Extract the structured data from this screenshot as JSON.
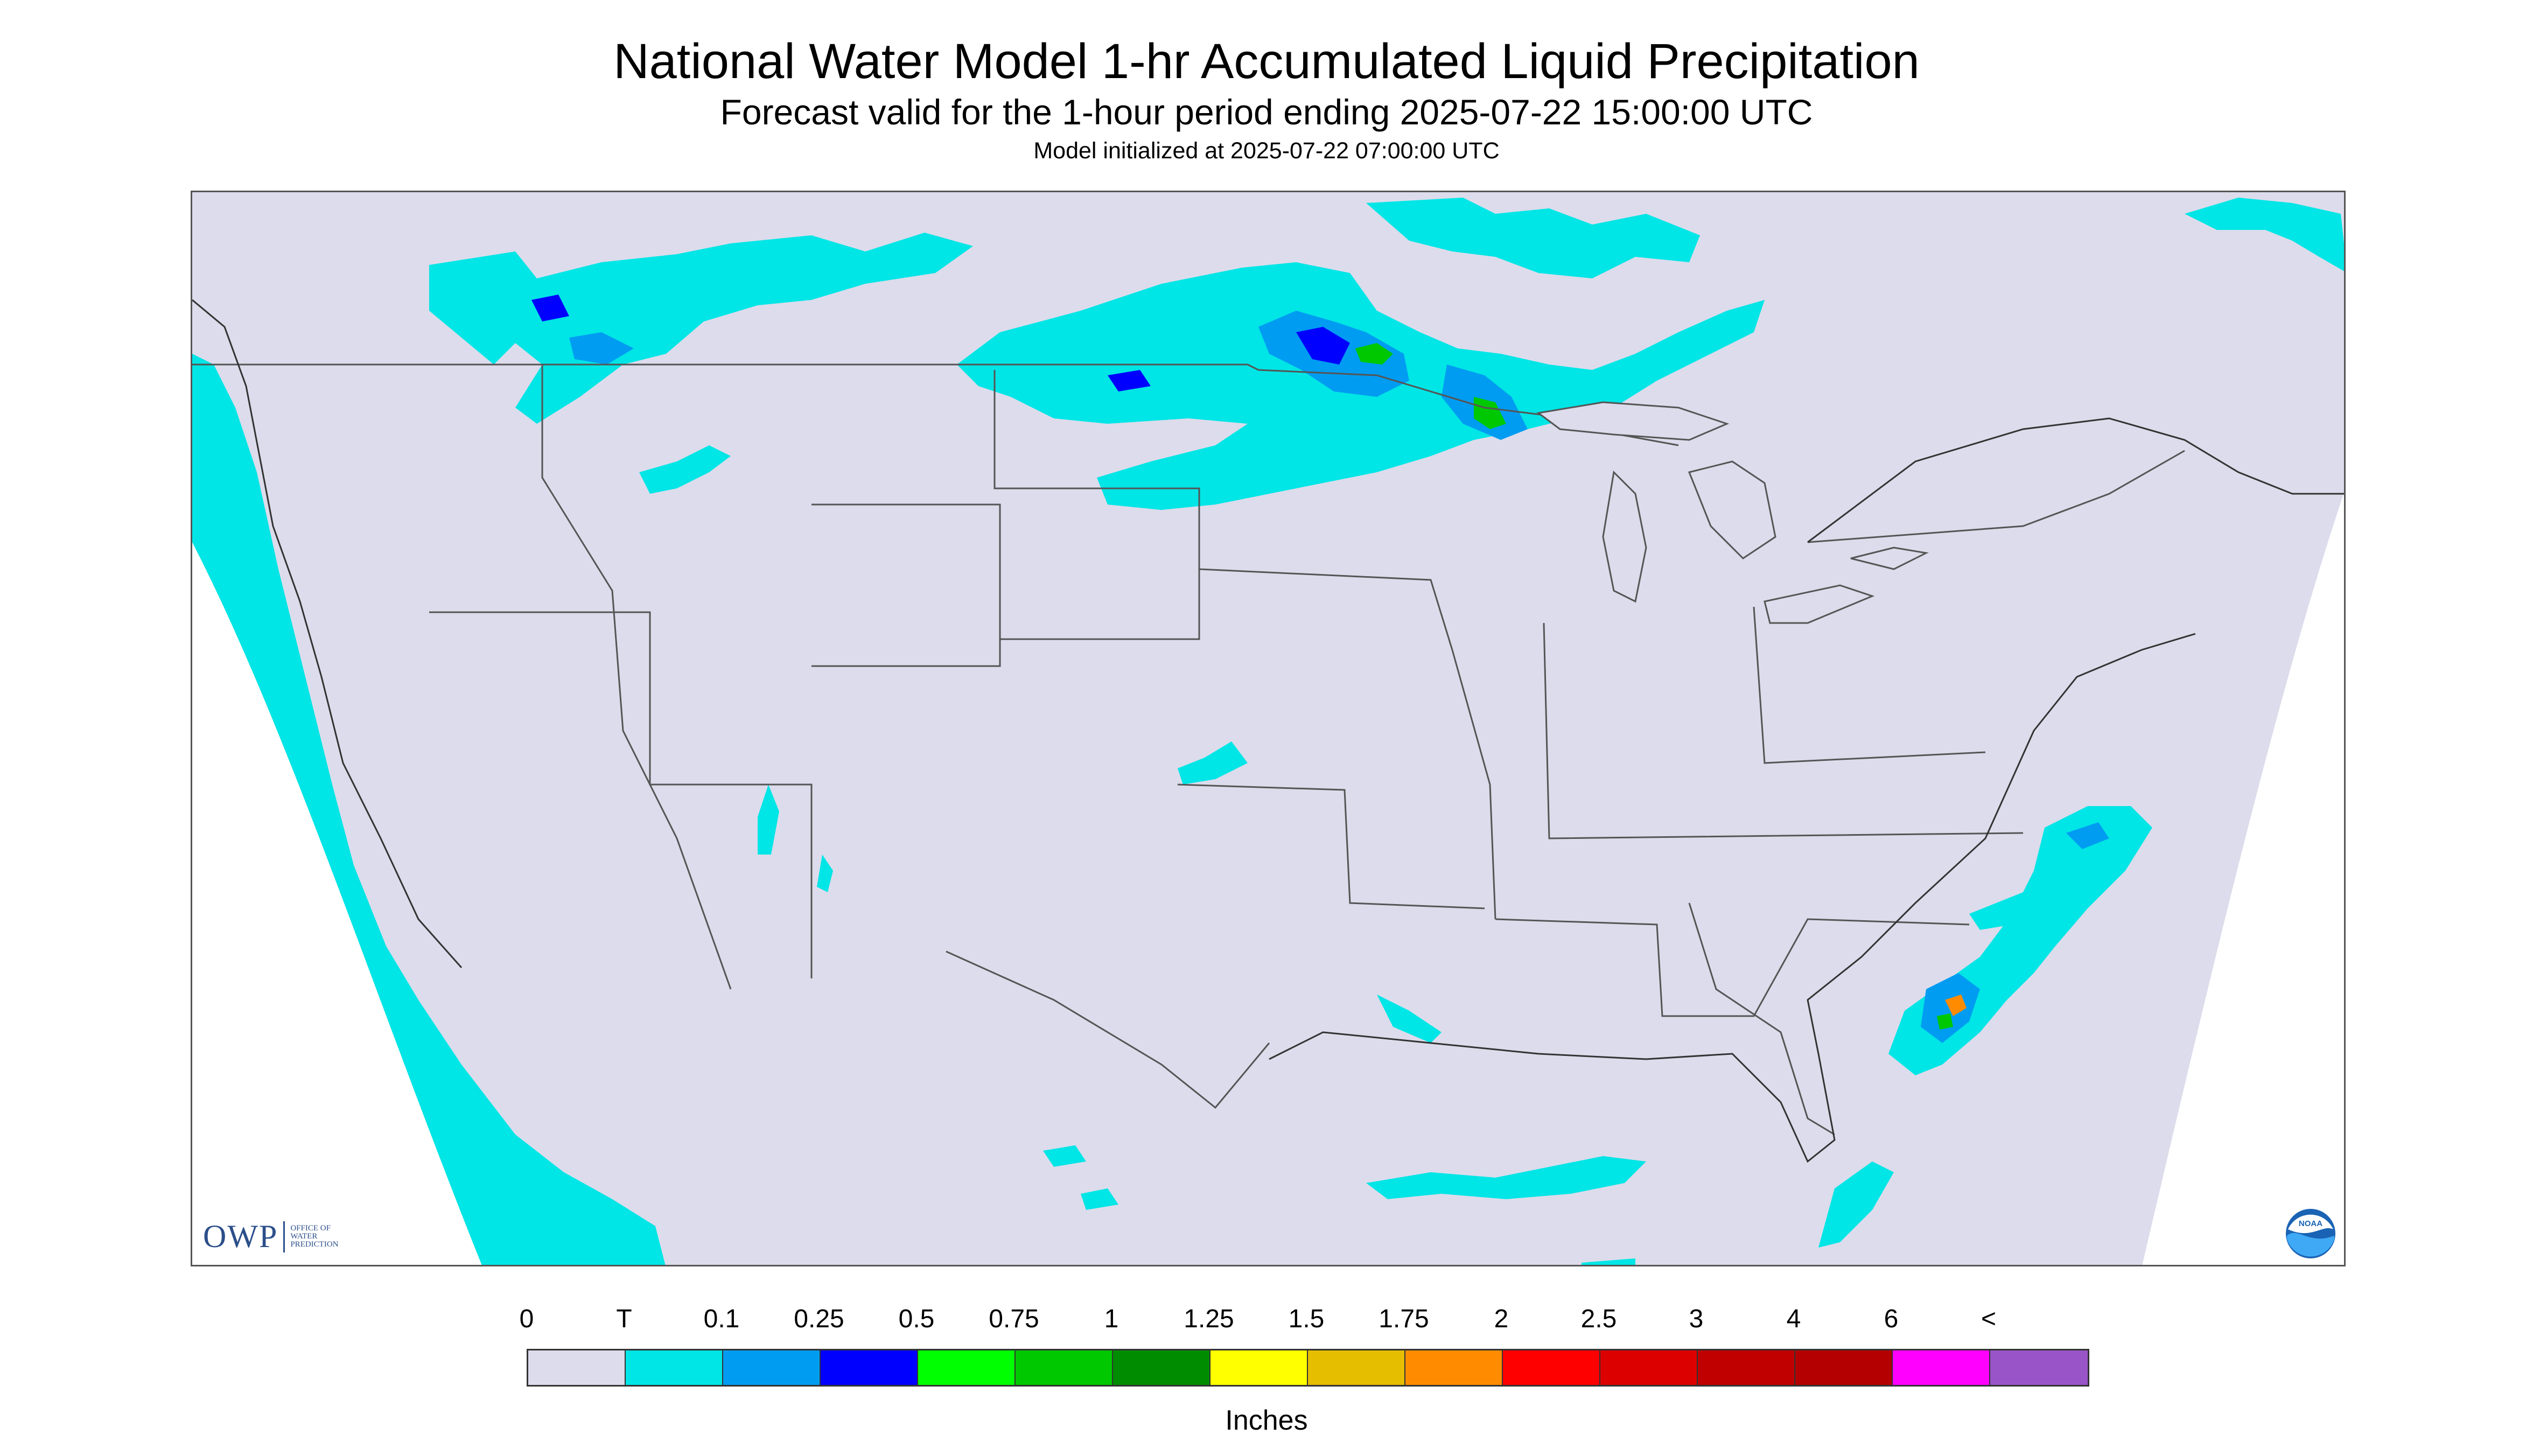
{
  "title": "National Water Model 1-hr Accumulated Liquid Precipitation",
  "subtitle": "Forecast valid for the 1-hour period ending 2025-07-22 15:00:00 UTC",
  "init_line": "Model initialized at 2025-07-22 07:00:00 UTC",
  "map": {
    "region": "Contiguous United States",
    "background_color": "#dcdcec",
    "outside_domain_color": "#ffffff",
    "boundary_color": "#555555"
  },
  "logos": {
    "owp": {
      "letters": "OWP",
      "lines": [
        "OFFICE OF",
        "WATER",
        "PREDICTION"
      ]
    },
    "noaa": {
      "text": "NOAA"
    }
  },
  "legend": {
    "ticks": [
      "0",
      "T",
      "0.1",
      "0.25",
      "0.5",
      "0.75",
      "1",
      "1.25",
      "1.5",
      "1.75",
      "2",
      "2.5",
      "3",
      "4",
      "6",
      "<"
    ],
    "colors": [
      "#dcdcec",
      "#00e5e5",
      "#009cf2",
      "#0000ff",
      "#00ff00",
      "#00c800",
      "#008c00",
      "#ffff00",
      "#e6be00",
      "#ff8c00",
      "#ff0000",
      "#dc0000",
      "#c00000",
      "#b40000",
      "#ff00ff",
      "#9955c8"
    ],
    "units": "Inches"
  }
}
